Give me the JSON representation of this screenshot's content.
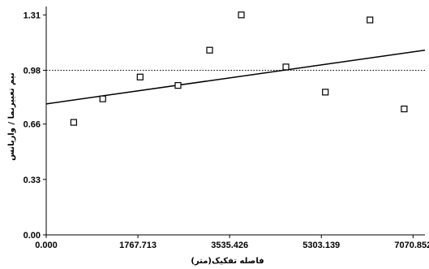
{
  "chart_data": {
    "type": "scatter",
    "title": "",
    "xlabel": "فاصله تفکیک(متر)",
    "ylabel": "نیم تغییرنما / واریانس",
    "xlim": [
      0,
      7300
    ],
    "ylim": [
      0,
      1.36
    ],
    "x_ticks": [
      0,
      1767.713,
      3535.426,
      5303.139,
      7070.852
    ],
    "x_tick_labels": [
      "0.000",
      "1767.713",
      "3535.426",
      "5303.139",
      "7070.852"
    ],
    "y_ticks": [
      0,
      0.33,
      0.66,
      0.98,
      1.31
    ],
    "y_tick_labels": [
      "0.00",
      "0.33",
      "0.66",
      "0.98",
      "1.31"
    ],
    "reference_line_y": 0.98,
    "reference_line_style": "dotted",
    "trend_line": {
      "x": [
        0,
        7300
      ],
      "y": [
        0.78,
        1.1
      ]
    },
    "series": [
      {
        "marker": "hollow-square",
        "points": [
          {
            "x": 530,
            "y": 0.67
          },
          {
            "x": 1090,
            "y": 0.81
          },
          {
            "x": 1810,
            "y": 0.94
          },
          {
            "x": 2540,
            "y": 0.89
          },
          {
            "x": 3150,
            "y": 1.1
          },
          {
            "x": 3760,
            "y": 1.31
          },
          {
            "x": 4620,
            "y": 1.0
          },
          {
            "x": 5380,
            "y": 0.85
          },
          {
            "x": 6240,
            "y": 1.28
          },
          {
            "x": 6900,
            "y": 0.75
          }
        ]
      }
    ],
    "grid": false,
    "legend": "none"
  }
}
